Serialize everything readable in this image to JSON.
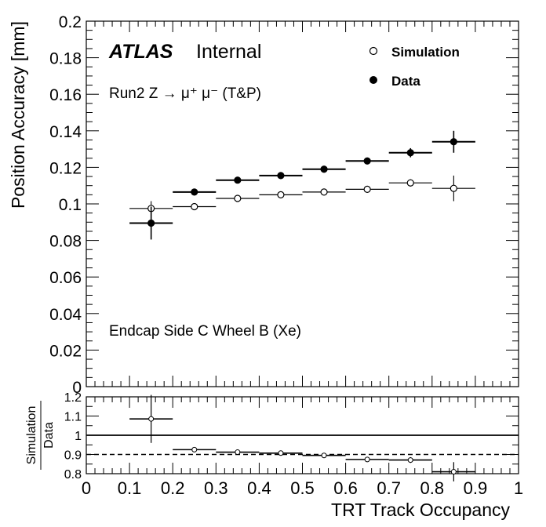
{
  "chart_data": [
    {
      "type": "scatter",
      "ylabel": "Position Accuracy [mm]",
      "ylim": [
        0,
        0.2
      ],
      "xlim": [
        0,
        1
      ],
      "yticks": [
        "0",
        "0.02",
        "0.04",
        "0.06",
        "0.08",
        "0.1",
        "0.12",
        "0.14",
        "0.16",
        "0.18",
        "0.2"
      ],
      "atlas_label": "ATLAS",
      "atlas_sub": "Internal",
      "annotation_top": "Run2 Z → μ⁺ μ⁻ (T&P)",
      "annotation_bottom": "Endcap Side C Wheel B (Xe)",
      "legend_position": "top-right",
      "series": [
        {
          "name": "Simulation",
          "marker": "open-circle",
          "x": [
            0.15,
            0.25,
            0.35,
            0.45,
            0.55,
            0.65,
            0.75,
            0.85
          ],
          "y": [
            0.0975,
            0.0985,
            0.103,
            0.105,
            0.1065,
            0.108,
            0.1115,
            0.1085
          ],
          "yerr": [
            0.004,
            0.0015,
            0.0012,
            0.0012,
            0.0012,
            0.0015,
            0.002,
            0.007
          ]
        },
        {
          "name": "Data",
          "marker": "filled-circle",
          "x": [
            0.15,
            0.25,
            0.35,
            0.45,
            0.55,
            0.65,
            0.75,
            0.85
          ],
          "y": [
            0.0895,
            0.1065,
            0.113,
            0.1155,
            0.119,
            0.1235,
            0.128,
            0.134
          ],
          "yerr": [
            0.009,
            0.0015,
            0.0012,
            0.0012,
            0.0012,
            0.0015,
            0.0025,
            0.006
          ]
        }
      ]
    },
    {
      "type": "scatter",
      "ylabel_num": "Simulation",
      "ylabel_den": "Data",
      "xlabel": "TRT Track Occupancy",
      "ylim": [
        0.8,
        1.2
      ],
      "xlim": [
        0,
        1
      ],
      "yticks": [
        "0.8",
        "0.9",
        "1",
        "1.1",
        "1.2"
      ],
      "xticks": [
        "0",
        "0.1",
        "0.2",
        "0.3",
        "0.4",
        "0.5",
        "0.6",
        "0.7",
        "0.8",
        "0.9",
        "1"
      ],
      "reference_lines": [
        1.0,
        0.9
      ],
      "series": [
        {
          "name": "Simulation/Data",
          "x": [
            0.15,
            0.25,
            0.35,
            0.45,
            0.55,
            0.65,
            0.75,
            0.85
          ],
          "y": [
            1.085,
            0.925,
            0.912,
            0.907,
            0.895,
            0.874,
            0.871,
            0.81
          ],
          "yerr": [
            0.125,
            0.012,
            0.01,
            0.008,
            0.008,
            0.01,
            0.015,
            0.05
          ]
        }
      ]
    }
  ]
}
